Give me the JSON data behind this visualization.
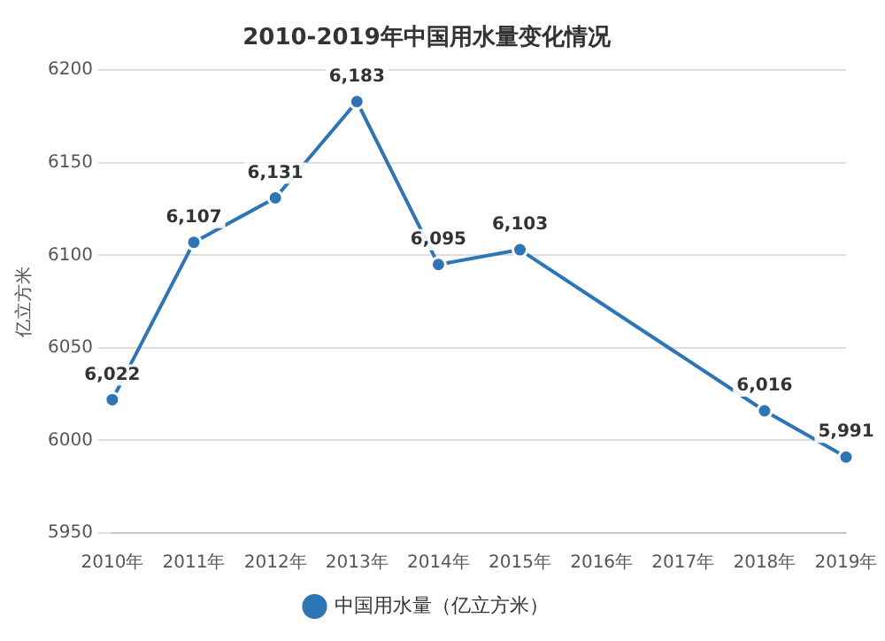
{
  "chart_data": {
    "type": "line",
    "title": "2010-2019年中国用水量变化情况",
    "ylabel": "亿立方米",
    "categories": [
      "2010年",
      "2011年",
      "2012年",
      "2013年",
      "2014年",
      "2015年",
      "2016年",
      "2017年",
      "2018年",
      "2019年"
    ],
    "series": [
      {
        "name": "中国用水量（亿立方米）",
        "color": "#2e75b6",
        "values": [
          6022,
          6107,
          6131,
          6183,
          6095,
          6103,
          null,
          null,
          6016,
          5991
        ],
        "value_labels": [
          "6,022",
          "6,107",
          "6,131",
          "6,183",
          "6,095",
          "6,103",
          null,
          null,
          "6,016",
          "5,991"
        ]
      }
    ],
    "ylim": [
      5950,
      6200
    ],
    "yticks": [
      5950,
      6000,
      6050,
      6100,
      6150,
      6200
    ],
    "grid": "y",
    "legend": "bottom",
    "marker": "circle",
    "line_style": "solid"
  }
}
